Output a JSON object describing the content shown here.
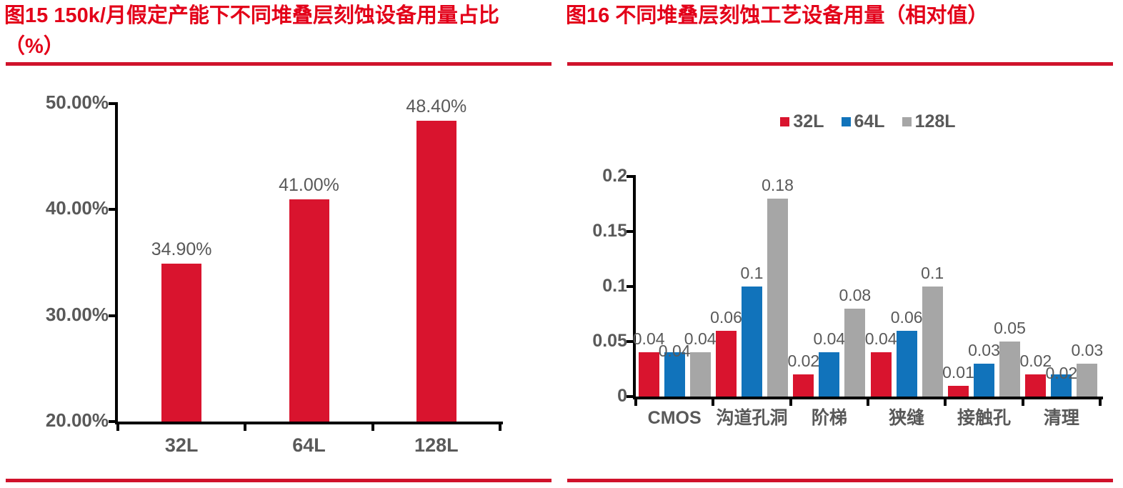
{
  "colors": {
    "title_red": "#e30019",
    "rule_red": "#d0122b",
    "bar_red": "#d9142e",
    "bar_blue": "#1173bb",
    "bar_gray": "#a6a6a6",
    "axis_black": "#000000",
    "text_gray": "#595959"
  },
  "chart_data": [
    {
      "type": "bar",
      "panel": "figure-15",
      "title": "图15  150k/月假定产能下不同堆叠层刻蚀设备用量占比（%）",
      "title_line1": "图15  150k/月假定产能下不同堆叠层刻蚀设备用量占比",
      "title_line2": "（%）",
      "categories": [
        "32L",
        "64L",
        "128L"
      ],
      "values": [
        34.9,
        41.0,
        48.4
      ],
      "data_labels": [
        "34.90%",
        "41.00%",
        "48.40%"
      ],
      "xlabel": "",
      "ylabel": "",
      "ylim": [
        20,
        50
      ],
      "yticks": [
        {
          "value": 20,
          "label": "20.00%"
        },
        {
          "value": 30,
          "label": "30.00%"
        },
        {
          "value": 40,
          "label": "40.00%"
        },
        {
          "value": 50,
          "label": "50.00%"
        }
      ],
      "grid": false,
      "legend_position": "none",
      "bar_color": "#d9142e"
    },
    {
      "type": "bar",
      "panel": "figure-16",
      "title": "图16  不同堆叠层刻蚀工艺设备用量（相对值）",
      "categories": [
        "CMOS",
        "沟道孔洞",
        "阶梯",
        "狭缝",
        "接触孔",
        "清理"
      ],
      "series": [
        {
          "name": "32L",
          "color": "#d9142e",
          "values": [
            0.04,
            0.06,
            0.02,
            0.04,
            0.01,
            0.02
          ],
          "labels": [
            "0.04",
            "0.06",
            "0.02",
            "0.04",
            "0.01",
            "0.02"
          ]
        },
        {
          "name": "64L",
          "color": "#1173bb",
          "values": [
            0.04,
            0.1,
            0.04,
            0.06,
            0.03,
            0.02
          ],
          "labels": [
            "0.04",
            "0.1",
            "0.04",
            "0.06",
            "0.03",
            "0.02"
          ]
        },
        {
          "name": "128L",
          "color": "#a6a6a6",
          "values": [
            0.04,
            0.18,
            0.08,
            0.1,
            0.05,
            0.03
          ],
          "labels": [
            "0.04",
            "0.18",
            "0.08",
            "0.1",
            "0.05",
            "0.03"
          ]
        }
      ],
      "legend": [
        "32L",
        "64L",
        "128L"
      ],
      "legend_position": "top",
      "xlabel": "",
      "ylabel": "",
      "ylim": [
        0,
        0.2
      ],
      "yticks": [
        {
          "value": 0,
          "label": "0"
        },
        {
          "value": 0.05,
          "label": "0.05"
        },
        {
          "value": 0.1,
          "label": "0.1"
        },
        {
          "value": 0.15,
          "label": "0.15"
        },
        {
          "value": 0.2,
          "label": "0.2"
        }
      ],
      "grid": false
    }
  ]
}
